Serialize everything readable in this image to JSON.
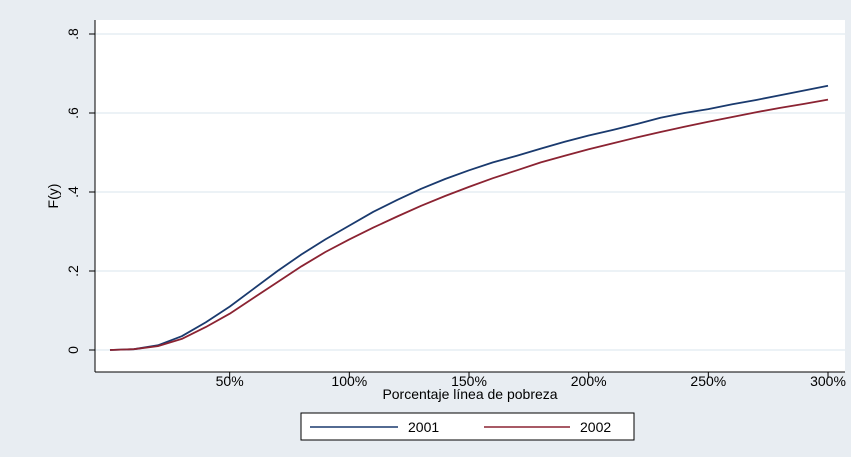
{
  "chart_data": {
    "type": "line",
    "title": "",
    "xlabel": "Porcentaje línea de pobreza",
    "ylabel": "F(y)",
    "xlim": [
      0,
      300
    ],
    "ylim": [
      0,
      0.8
    ],
    "x_ticks": [
      {
        "value": 50,
        "label": "50%"
      },
      {
        "value": 100,
        "label": "100%"
      },
      {
        "value": 150,
        "label": "150%"
      },
      {
        "value": 200,
        "label": "200%"
      },
      {
        "value": 250,
        "label": "250%"
      },
      {
        "value": 300,
        "label": "300%"
      }
    ],
    "y_ticks": [
      {
        "value": 0,
        "label": "0"
      },
      {
        "value": 0.2,
        "label": ".2"
      },
      {
        "value": 0.4,
        "label": ".4"
      },
      {
        "value": 0.6,
        "label": ".6"
      },
      {
        "value": 0.8,
        "label": ".8"
      }
    ],
    "grid": "horizontal",
    "legend_position": "bottom",
    "series": [
      {
        "name": "2001",
        "color": "#1a3a6e",
        "x": [
          0,
          10,
          20,
          30,
          40,
          50,
          60,
          70,
          80,
          90,
          100,
          110,
          120,
          130,
          140,
          150,
          160,
          170,
          180,
          190,
          200,
          210,
          220,
          230,
          240,
          250,
          260,
          270,
          280,
          290,
          300
        ],
        "y": [
          0,
          0.002,
          0.012,
          0.035,
          0.07,
          0.11,
          0.155,
          0.2,
          0.242,
          0.28,
          0.315,
          0.35,
          0.38,
          0.408,
          0.433,
          0.455,
          0.475,
          0.492,
          0.51,
          0.527,
          0.543,
          0.557,
          0.572,
          0.588,
          0.6,
          0.61,
          0.622,
          0.633,
          0.645,
          0.657,
          0.669
        ]
      },
      {
        "name": "2002",
        "color": "#8b2332",
        "x": [
          0,
          10,
          20,
          30,
          40,
          50,
          60,
          70,
          80,
          90,
          100,
          110,
          120,
          130,
          140,
          150,
          160,
          170,
          180,
          190,
          200,
          210,
          220,
          230,
          240,
          250,
          260,
          270,
          280,
          290,
          300
        ],
        "y": [
          0,
          0.002,
          0.01,
          0.028,
          0.058,
          0.092,
          0.132,
          0.172,
          0.212,
          0.248,
          0.28,
          0.31,
          0.338,
          0.365,
          0.39,
          0.413,
          0.435,
          0.455,
          0.475,
          0.492,
          0.508,
          0.523,
          0.538,
          0.552,
          0.565,
          0.578,
          0.59,
          0.602,
          0.613,
          0.623,
          0.634
        ]
      }
    ]
  }
}
